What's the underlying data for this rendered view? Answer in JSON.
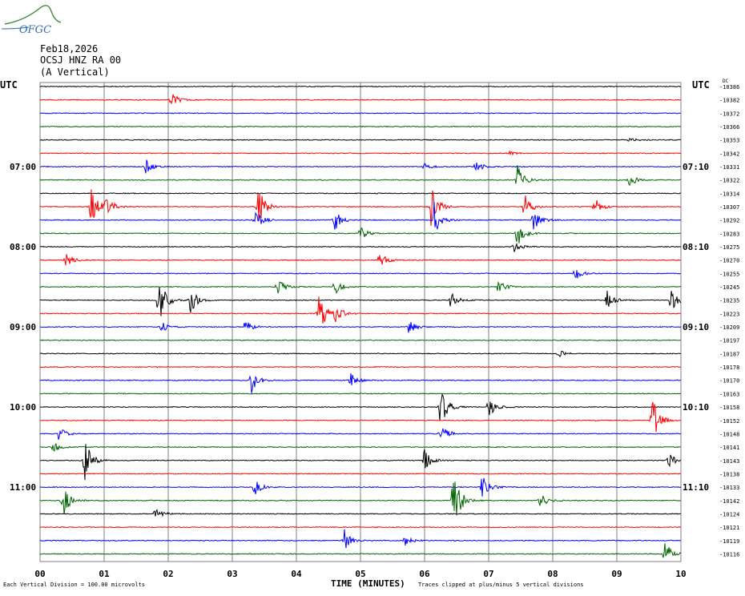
{
  "logo": {
    "text": "OFGC",
    "icon": "ofgc-logo-icon",
    "color": "#2a6db5",
    "arc_color": "#3b8a3b"
  },
  "header": {
    "date": "Feb18,2026",
    "station": "OCSJ HNZ RA 00",
    "component": "(A Vertical)"
  },
  "utc_left": "UTC",
  "utc_right": "UTC",
  "dc_label": "DC",
  "colors": {
    "trace_cycle": [
      "#000000",
      "#ff0000",
      "#0000ff",
      "#006400"
    ],
    "grid": "#808080"
  },
  "chart_data": {
    "type": "line",
    "plot_kind": "helicorder",
    "xlabel": "TIME (MINUTES)",
    "x_ticks": [
      "00",
      "01",
      "02",
      "03",
      "04",
      "05",
      "06",
      "07",
      "08",
      "09",
      "10"
    ],
    "xlim": [
      0,
      10
    ],
    "left_time_labels": [
      "07:00",
      "08:00",
      "09:00",
      "10:00",
      "11:00"
    ],
    "right_time_labels": [
      "07:10",
      "08:10",
      "09:10",
      "10:10",
      "11:10"
    ],
    "trace_count": 36,
    "dc_offsets": [
      "-10386",
      "-10382",
      "-10372",
      "-10366",
      "-10353",
      "-10342",
      "-10331",
      "-10322",
      "-10314",
      "-10307",
      "-10292",
      "-10283",
      "-10275",
      "-10270",
      "-10255",
      "-10245",
      "-10235",
      "-10223",
      "-10209",
      "-10197",
      "-10187",
      "-10178",
      "-10170",
      "-10163",
      "-10158",
      "-10152",
      "-10148",
      "-10141",
      "-10143",
      "-10138",
      "-10133",
      "-10142",
      "-10124",
      "-10121",
      "-10119",
      "-10116"
    ],
    "events": [
      {
        "trace": 1,
        "minute": 2.05,
        "amp": 10
      },
      {
        "trace": 4,
        "minute": 9.2,
        "amp": 3
      },
      {
        "trace": 5,
        "minute": 7.3,
        "amp": 3
      },
      {
        "trace": 6,
        "minute": 1.65,
        "amp": 10
      },
      {
        "trace": 6,
        "minute": 6.8,
        "amp": 8
      },
      {
        "trace": 6,
        "minute": 6.0,
        "amp": 4
      },
      {
        "trace": 7,
        "minute": 7.45,
        "amp": 18
      },
      {
        "trace": 7,
        "minute": 9.2,
        "amp": 8
      },
      {
        "trace": 9,
        "minute": 0.8,
        "amp": 22
      },
      {
        "trace": 9,
        "minute": 1.0,
        "amp": 20
      },
      {
        "trace": 9,
        "minute": 3.4,
        "amp": 26
      },
      {
        "trace": 9,
        "minute": 6.1,
        "amp": 28
      },
      {
        "trace": 9,
        "minute": 7.55,
        "amp": 18
      },
      {
        "trace": 9,
        "minute": 8.65,
        "amp": 12
      },
      {
        "trace": 10,
        "minute": 3.35,
        "amp": 14
      },
      {
        "trace": 10,
        "minute": 4.6,
        "amp": 14
      },
      {
        "trace": 10,
        "minute": 6.15,
        "amp": 22
      },
      {
        "trace": 10,
        "minute": 7.7,
        "amp": 14
      },
      {
        "trace": 11,
        "minute": 5.0,
        "amp": 8
      },
      {
        "trace": 11,
        "minute": 7.45,
        "amp": 18
      },
      {
        "trace": 12,
        "minute": 7.4,
        "amp": 6
      },
      {
        "trace": 13,
        "minute": 0.4,
        "amp": 9
      },
      {
        "trace": 13,
        "minute": 5.3,
        "amp": 10
      },
      {
        "trace": 14,
        "minute": 8.35,
        "amp": 10
      },
      {
        "trace": 15,
        "minute": 3.7,
        "amp": 12
      },
      {
        "trace": 15,
        "minute": 4.6,
        "amp": 10
      },
      {
        "trace": 15,
        "minute": 7.15,
        "amp": 10
      },
      {
        "trace": 16,
        "minute": 1.85,
        "amp": 34
      },
      {
        "trace": 16,
        "minute": 2.35,
        "amp": 16
      },
      {
        "trace": 16,
        "minute": 6.4,
        "amp": 12
      },
      {
        "trace": 16,
        "minute": 8.85,
        "amp": 12
      },
      {
        "trace": 16,
        "minute": 9.85,
        "amp": 16
      },
      {
        "trace": 17,
        "minute": 4.35,
        "amp": 30
      },
      {
        "trace": 17,
        "minute": 4.6,
        "amp": 14
      },
      {
        "trace": 18,
        "minute": 1.9,
        "amp": 6
      },
      {
        "trace": 18,
        "minute": 3.2,
        "amp": 9
      },
      {
        "trace": 18,
        "minute": 5.75,
        "amp": 9
      },
      {
        "trace": 20,
        "minute": 8.1,
        "amp": 5
      },
      {
        "trace": 22,
        "minute": 3.3,
        "amp": 16
      },
      {
        "trace": 22,
        "minute": 4.85,
        "amp": 10
      },
      {
        "trace": 24,
        "minute": 6.25,
        "amp": 26
      },
      {
        "trace": 24,
        "minute": 7.0,
        "amp": 14
      },
      {
        "trace": 25,
        "minute": 9.55,
        "amp": 30
      },
      {
        "trace": 26,
        "minute": 0.3,
        "amp": 10
      },
      {
        "trace": 26,
        "minute": 6.25,
        "amp": 14
      },
      {
        "trace": 27,
        "minute": 0.2,
        "amp": 8
      },
      {
        "trace": 28,
        "minute": 0.7,
        "amp": 26
      },
      {
        "trace": 28,
        "minute": 6.0,
        "amp": 14
      },
      {
        "trace": 28,
        "minute": 9.8,
        "amp": 10
      },
      {
        "trace": 30,
        "minute": 3.35,
        "amp": 10
      },
      {
        "trace": 30,
        "minute": 6.9,
        "amp": 16
      },
      {
        "trace": 31,
        "minute": 0.35,
        "amp": 24
      },
      {
        "trace": 31,
        "minute": 6.45,
        "amp": 40
      },
      {
        "trace": 31,
        "minute": 7.8,
        "amp": 10
      },
      {
        "trace": 32,
        "minute": 1.8,
        "amp": 7
      },
      {
        "trace": 34,
        "minute": 4.75,
        "amp": 14
      },
      {
        "trace": 34,
        "minute": 5.7,
        "amp": 7
      },
      {
        "trace": 35,
        "minute": 9.75,
        "amp": 16
      }
    ]
  },
  "x_title": "TIME (MINUTES)",
  "footnote_left": "Each Vertical Division =  100.00 microvolts",
  "footnote_right": "Traces clipped at plus/minus 5 vertical divisions"
}
